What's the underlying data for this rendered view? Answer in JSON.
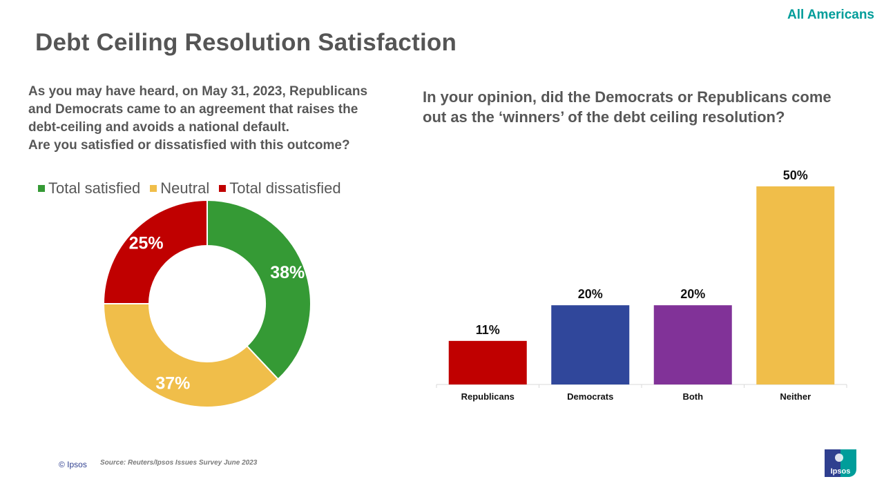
{
  "header": {
    "audience": "All Americans",
    "title": "Debt Ceiling Resolution Satisfaction"
  },
  "left": {
    "question_lines": [
      "As you may have heard, on May 31, 2023, Republicans",
      "and Democrats came to an agreement that raises the",
      "debt-ceiling and avoids a national default.",
      "Are you satisfied or dissatisfied with this outcome?"
    ]
  },
  "right": {
    "question_lines": [
      "In your opinion, did the Democrats or Republicans come",
      "out as the ‘winners’ of the debt ceiling resolution?"
    ]
  },
  "footer": {
    "copyright": "© Ipsos",
    "source": "Source: Reuters/Ipsos Issues  Survey June 2023",
    "logo_text": "Ipsos"
  },
  "colors": {
    "brand_teal": "#009d9a",
    "ipsos_blue": "#2f3f8f"
  },
  "chart_data": [
    {
      "type": "pie",
      "subtype": "donut",
      "title": "Are you satisfied or dissatisfied with this outcome?",
      "legend": [
        "Total satisfied",
        "Neutral",
        "Total dissatisfied"
      ],
      "legend_position": "top",
      "slices": [
        {
          "label": "Total satisfied",
          "value": 38,
          "display": "38%",
          "color": "#359a35"
        },
        {
          "label": "Neutral",
          "value": 37,
          "display": "37%",
          "color": "#f0be4a"
        },
        {
          "label": "Total dissatisfied",
          "value": 25,
          "display": "25%",
          "color": "#c00000"
        }
      ]
    },
    {
      "type": "bar",
      "title": "In your opinion, did the Democrats or Republicans come out as the ‘winners’ of the debt ceiling resolution?",
      "categories": [
        "Republicans",
        "Democrats",
        "Both",
        "Neither"
      ],
      "values": [
        11,
        20,
        20,
        50
      ],
      "labels": [
        "11%",
        "20%",
        "20%",
        "50%"
      ],
      "colors": [
        "#c00000",
        "#30479b",
        "#813298",
        "#f0be4a"
      ],
      "xlabel": "",
      "ylabel": "",
      "ylim": [
        0,
        50
      ],
      "grid": false
    }
  ]
}
